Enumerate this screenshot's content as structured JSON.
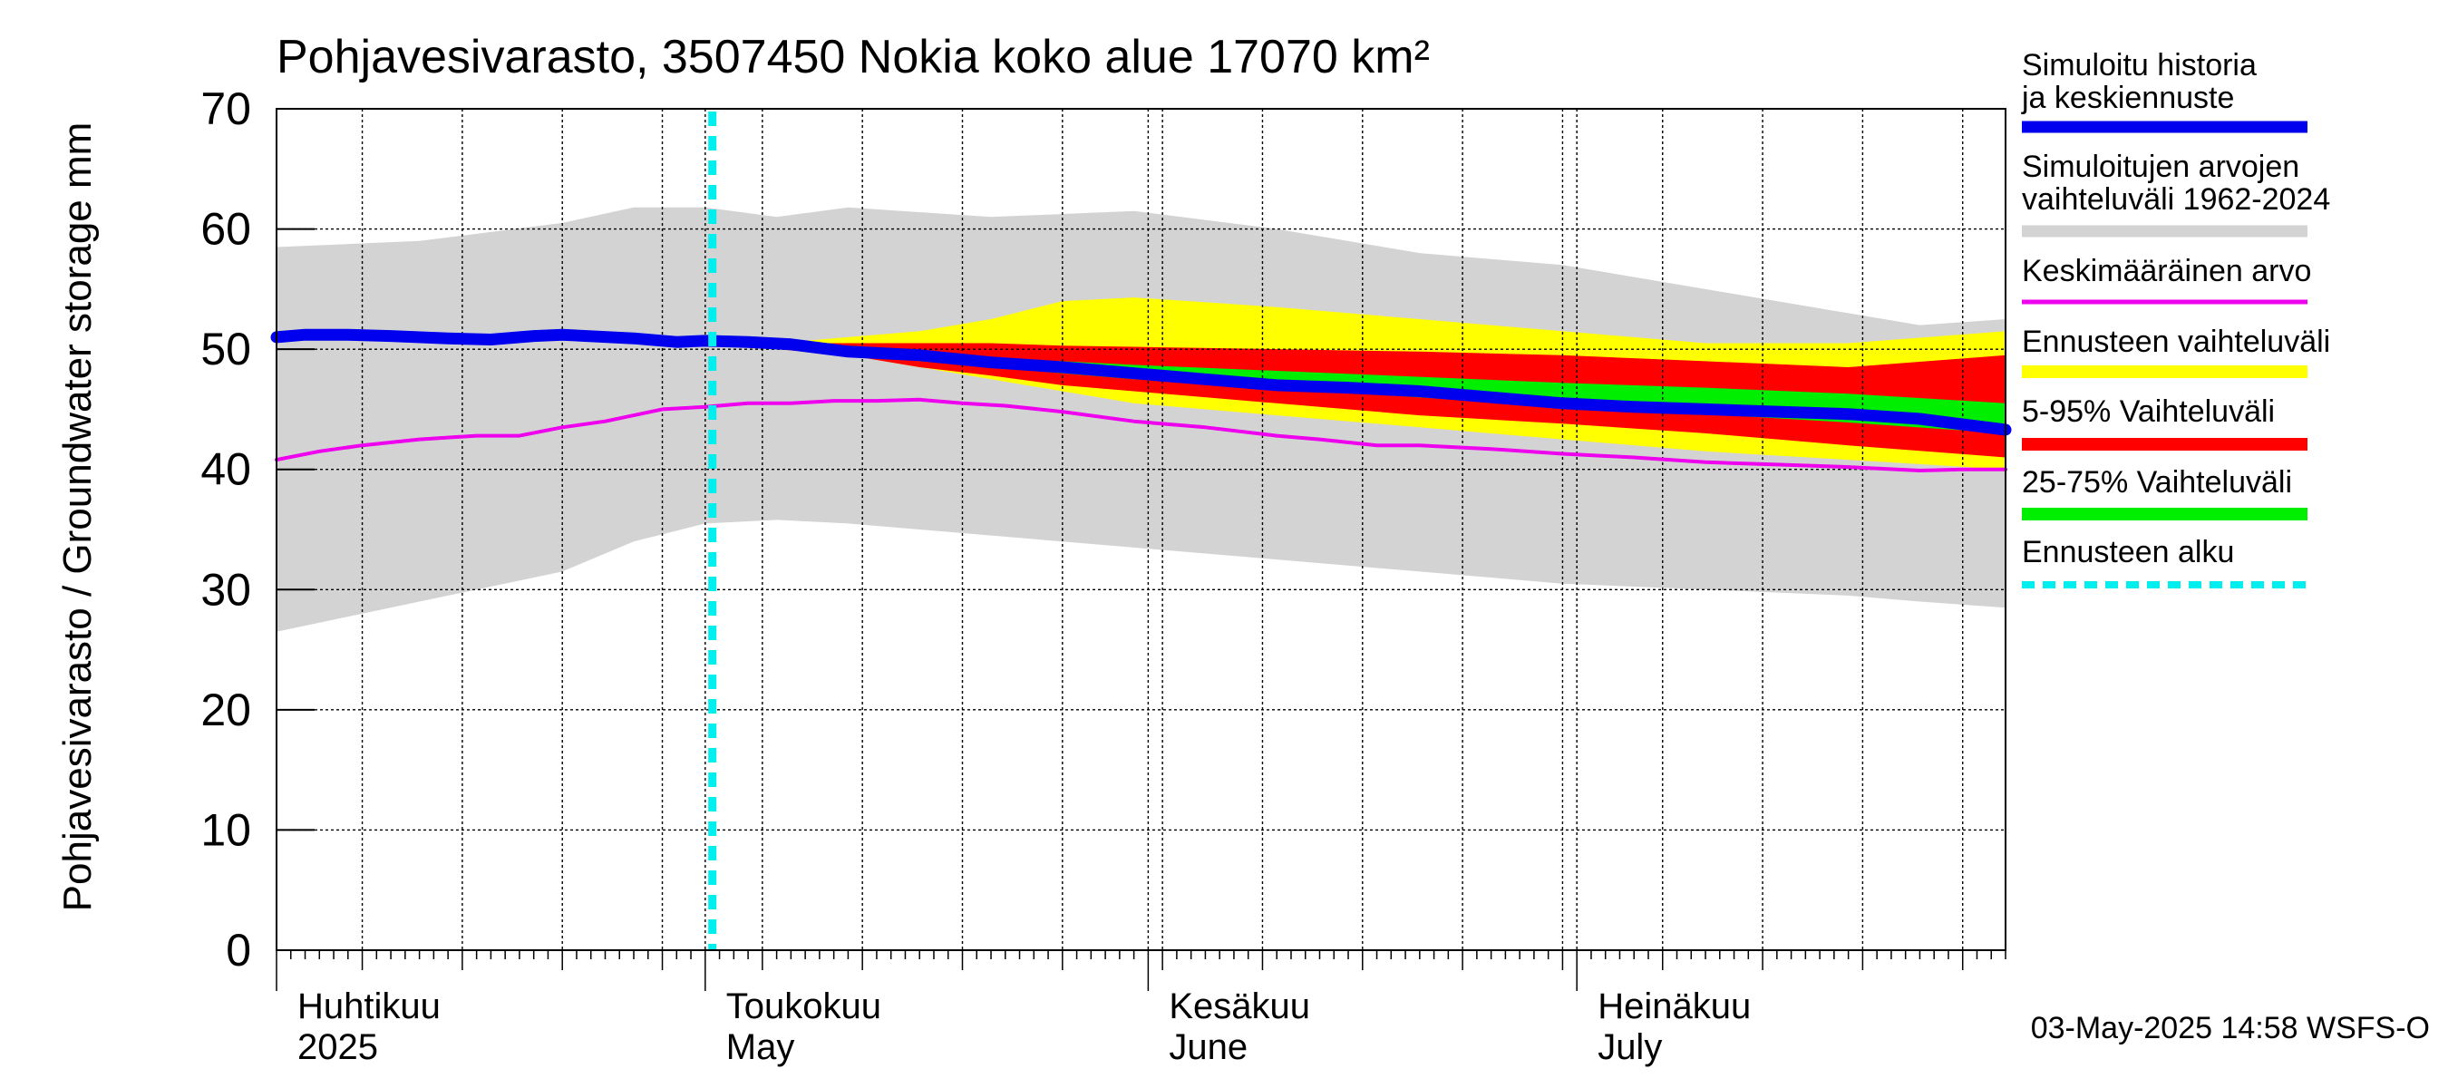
{
  "chart_data": {
    "type": "area",
    "title": "Pohjavesivarasto, 3507450 Nokia koko alue 17070 km²",
    "ylabel": "Pohjavesivarasto / Groundwater storage   mm",
    "ylim": [
      0,
      70
    ],
    "yticks": [
      0,
      10,
      20,
      30,
      40,
      50,
      60,
      70
    ],
    "grid": true,
    "x_domain_days": [
      0,
      121
    ],
    "forecast_start_day": 30.5,
    "months": [
      {
        "day": 0,
        "fi": "Huhtikuu",
        "en": "2025"
      },
      {
        "day": 30,
        "fi": "Toukokuu",
        "en": "May"
      },
      {
        "day": 61,
        "fi": "Kesäkuu",
        "en": "June"
      },
      {
        "day": 91,
        "fi": "Heinäkuu",
        "en": "July"
      }
    ],
    "series": [
      {
        "name": "Simuloitujen arvojen vaihteluväli 1962-2024",
        "kind": "band",
        "color": "#d3d3d3",
        "x": [
          0,
          10,
          20,
          25,
          30,
          35,
          40,
          50,
          60,
          70,
          80,
          90,
          100,
          110,
          115,
          121
        ],
        "upper": [
          58.5,
          59.0,
          60.5,
          61.8,
          61.8,
          61.0,
          61.8,
          61.0,
          61.5,
          60.0,
          58.0,
          57.0,
          55.0,
          53.0,
          52.0,
          52.5
        ],
        "lower": [
          26.5,
          29.0,
          31.5,
          34.0,
          35.5,
          35.8,
          35.5,
          34.5,
          33.5,
          32.5,
          31.5,
          30.5,
          30.0,
          29.5,
          29.0,
          28.5
        ]
      },
      {
        "name": "Ennusteen vaihteluväli",
        "kind": "band",
        "color": "#ffff00",
        "x": [
          35,
          40,
          45,
          50,
          55,
          60,
          70,
          80,
          90,
          100,
          110,
          121
        ],
        "upper": [
          50.5,
          51.0,
          51.5,
          52.5,
          54.0,
          54.3,
          53.5,
          52.5,
          51.5,
          50.5,
          50.5,
          51.5
        ],
        "lower": [
          50.2,
          49.5,
          48.5,
          47.5,
          46.5,
          45.5,
          44.5,
          43.5,
          42.5,
          41.5,
          40.8,
          40.0
        ]
      },
      {
        "name": "5-95% Vaihteluväli",
        "kind": "band",
        "color": "#ff0000",
        "x": [
          35,
          40,
          45,
          50,
          55,
          60,
          70,
          80,
          90,
          100,
          110,
          121
        ],
        "upper": [
          50.5,
          50.5,
          50.5,
          50.5,
          50.3,
          50.2,
          50.0,
          49.8,
          49.5,
          49.0,
          48.5,
          49.5
        ],
        "lower": [
          50.0,
          49.5,
          48.5,
          47.8,
          47.0,
          46.5,
          45.5,
          44.5,
          43.8,
          43.0,
          42.0,
          41.0
        ]
      },
      {
        "name": "25-75% Vaihteluväli",
        "kind": "band",
        "color": "#00ee00",
        "x": [
          35,
          40,
          45,
          50,
          55,
          60,
          70,
          80,
          90,
          100,
          110,
          121
        ],
        "upper": [
          50.3,
          50.0,
          49.6,
          49.3,
          49.0,
          48.7,
          48.2,
          47.7,
          47.2,
          46.8,
          46.3,
          45.5
        ],
        "lower": [
          50.1,
          49.6,
          49.0,
          48.5,
          48.0,
          47.5,
          46.8,
          46.0,
          45.2,
          44.6,
          43.9,
          43.0
        ]
      },
      {
        "name": "Keskimääräinen arvo",
        "kind": "line",
        "color": "#ee00ee",
        "width": 4,
        "x": [
          0,
          3,
          6,
          10,
          14,
          17,
          20,
          23,
          25,
          27,
          30,
          33,
          36,
          39,
          42,
          45,
          48,
          51,
          55,
          60,
          65,
          70,
          73,
          77,
          80,
          85,
          90,
          95,
          100,
          105,
          110,
          115,
          118,
          121
        ],
        "values": [
          40.8,
          41.5,
          42.0,
          42.5,
          42.8,
          42.8,
          43.5,
          44.0,
          44.5,
          45.0,
          45.2,
          45.5,
          45.5,
          45.7,
          45.7,
          45.8,
          45.5,
          45.3,
          44.8,
          44.0,
          43.5,
          42.8,
          42.5,
          42.0,
          42.0,
          41.7,
          41.3,
          41.0,
          40.6,
          40.4,
          40.2,
          39.9,
          40.0,
          40.0
        ]
      },
      {
        "name": "Simuloitu historia ja keskiennuste",
        "kind": "line",
        "color": "#0000ee",
        "width": 13,
        "x": [
          0,
          2,
          5,
          8,
          12,
          15,
          18,
          20,
          25,
          28,
          30,
          33,
          36,
          40,
          45,
          50,
          55,
          60,
          65,
          70,
          75,
          80,
          85,
          90,
          95,
          100,
          105,
          110,
          115,
          121
        ],
        "values": [
          51.0,
          51.2,
          51.2,
          51.1,
          50.9,
          50.8,
          51.1,
          51.2,
          50.9,
          50.6,
          50.7,
          50.6,
          50.4,
          49.8,
          49.5,
          48.9,
          48.5,
          48.0,
          47.5,
          47.0,
          46.8,
          46.5,
          46.0,
          45.5,
          45.2,
          45.0,
          44.8,
          44.6,
          44.2,
          43.3
        ]
      },
      {
        "name": "Ennusteen alku",
        "kind": "vline",
        "color": "#00eeee"
      }
    ],
    "legend": [
      {
        "label": "Simuloitu historia ja keskiennuste",
        "color": "#0000ee",
        "style": "thick"
      },
      {
        "label": "Simuloitujen arvojen vaihteluväli 1962-2024",
        "color": "#d3d3d3",
        "style": "solid"
      },
      {
        "label": "Keskimääräinen arvo",
        "color": "#ee00ee",
        "style": "thin"
      },
      {
        "label": "Ennusteen vaihteluväli",
        "color": "#ffff00",
        "style": "solid"
      },
      {
        "label": "5-95% Vaihteluväli",
        "color": "#ff0000",
        "style": "solid"
      },
      {
        "label": "25-75% Vaihteluväli",
        "color": "#00ee00",
        "style": "solid"
      },
      {
        "label": "Ennusteen alku",
        "color": "#00eeee",
        "style": "dashed"
      }
    ],
    "footer": "03-May-2025 14:58 WSFS-O"
  }
}
